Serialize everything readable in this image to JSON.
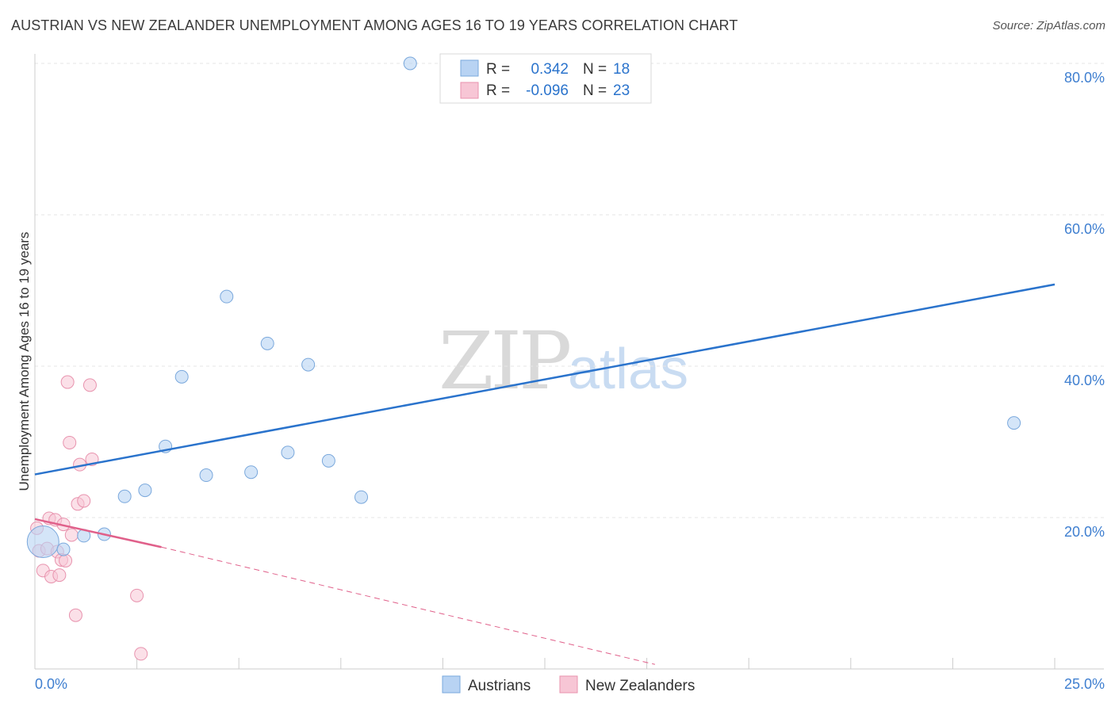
{
  "title": "AUSTRIAN VS NEW ZEALANDER UNEMPLOYMENT AMONG AGES 16 TO 19 YEARS CORRELATION CHART",
  "source": "Source: ZipAtlas.com",
  "watermark": {
    "zip": "ZIP",
    "atlas": "atlas"
  },
  "colors": {
    "austrians_fill": "#b8d3f3",
    "austrians_stroke": "#7aa8dc",
    "austrians_line": "#2a73cc",
    "nz_fill": "#f7c6d5",
    "nz_stroke": "#e893ae",
    "nz_line": "#e0608a",
    "axis_text": "#3f7fd0"
  },
  "legend_box": {
    "rows": [
      {
        "r_label": "R =",
        "r_value": "0.342",
        "n_label": "N =",
        "n_value": "18"
      },
      {
        "r_label": "R =",
        "r_value": "-0.096",
        "n_label": "N =",
        "n_value": "23"
      }
    ]
  },
  "bottom_legend": {
    "items": [
      "Austrians",
      "New Zealanders"
    ]
  },
  "chart_data": {
    "type": "scatter",
    "title": "AUSTRIAN VS NEW ZEALANDER UNEMPLOYMENT AMONG AGES 16 TO 19 YEARS CORRELATION CHART",
    "xlabel": "",
    "ylabel": "Unemployment Among Ages 16 to 19 years",
    "xlim": [
      0,
      25
    ],
    "ylim": [
      0,
      80
    ],
    "x_tick_labels": [
      "0.0%",
      "25.0%"
    ],
    "y_ticks": [
      20,
      40,
      60,
      80
    ],
    "y_tick_labels": [
      "20.0%",
      "40.0%",
      "60.0%",
      "80.0%"
    ],
    "grid": true,
    "legend_position": "top-center",
    "series": [
      {
        "name": "Austrians",
        "r": 0.342,
        "n": 18,
        "trend": {
          "x": [
            0,
            25
          ],
          "y": [
            25.7,
            50.8
          ]
        },
        "points": [
          {
            "x": 0.2,
            "y": 16.8,
            "size": "large"
          },
          {
            "x": 0.7,
            "y": 15.8
          },
          {
            "x": 1.2,
            "y": 17.6
          },
          {
            "x": 1.7,
            "y": 17.8
          },
          {
            "x": 2.2,
            "y": 22.8
          },
          {
            "x": 2.7,
            "y": 23.6
          },
          {
            "x": 3.2,
            "y": 29.4
          },
          {
            "x": 3.6,
            "y": 38.6
          },
          {
            "x": 4.2,
            "y": 25.6
          },
          {
            "x": 4.7,
            "y": 49.2
          },
          {
            "x": 5.3,
            "y": 26.0
          },
          {
            "x": 5.7,
            "y": 43.0
          },
          {
            "x": 6.2,
            "y": 28.6
          },
          {
            "x": 6.7,
            "y": 40.2
          },
          {
            "x": 7.2,
            "y": 27.5
          },
          {
            "x": 8.0,
            "y": 22.7
          },
          {
            "x": 9.2,
            "y": 80.0
          },
          {
            "x": 24.0,
            "y": 32.5
          }
        ]
      },
      {
        "name": "New Zealanders",
        "r": -0.096,
        "n": 23,
        "trend_solid": {
          "x": [
            0,
            3.1
          ],
          "y": [
            19.8,
            16.1
          ]
        },
        "trend_dashed": {
          "x": [
            3.1,
            15.2
          ],
          "y": [
            16.1,
            0.6
          ]
        },
        "points": [
          {
            "x": 0.05,
            "y": 18.6
          },
          {
            "x": 0.1,
            "y": 15.6
          },
          {
            "x": 0.2,
            "y": 13.0
          },
          {
            "x": 0.3,
            "y": 15.9
          },
          {
            "x": 0.35,
            "y": 19.9
          },
          {
            "x": 0.4,
            "y": 12.2
          },
          {
            "x": 0.5,
            "y": 19.7
          },
          {
            "x": 0.55,
            "y": 15.5
          },
          {
            "x": 0.6,
            "y": 12.4
          },
          {
            "x": 0.65,
            "y": 14.4
          },
          {
            "x": 0.7,
            "y": 19.1
          },
          {
            "x": 0.75,
            "y": 14.3
          },
          {
            "x": 0.8,
            "y": 37.9
          },
          {
            "x": 0.85,
            "y": 29.9
          },
          {
            "x": 0.9,
            "y": 17.7
          },
          {
            "x": 1.0,
            "y": 7.1
          },
          {
            "x": 1.05,
            "y": 21.8
          },
          {
            "x": 1.1,
            "y": 27.0
          },
          {
            "x": 1.2,
            "y": 22.2
          },
          {
            "x": 1.35,
            "y": 37.5
          },
          {
            "x": 1.4,
            "y": 27.7
          },
          {
            "x": 2.5,
            "y": 9.7
          },
          {
            "x": 2.6,
            "y": 2.0
          }
        ]
      }
    ]
  }
}
